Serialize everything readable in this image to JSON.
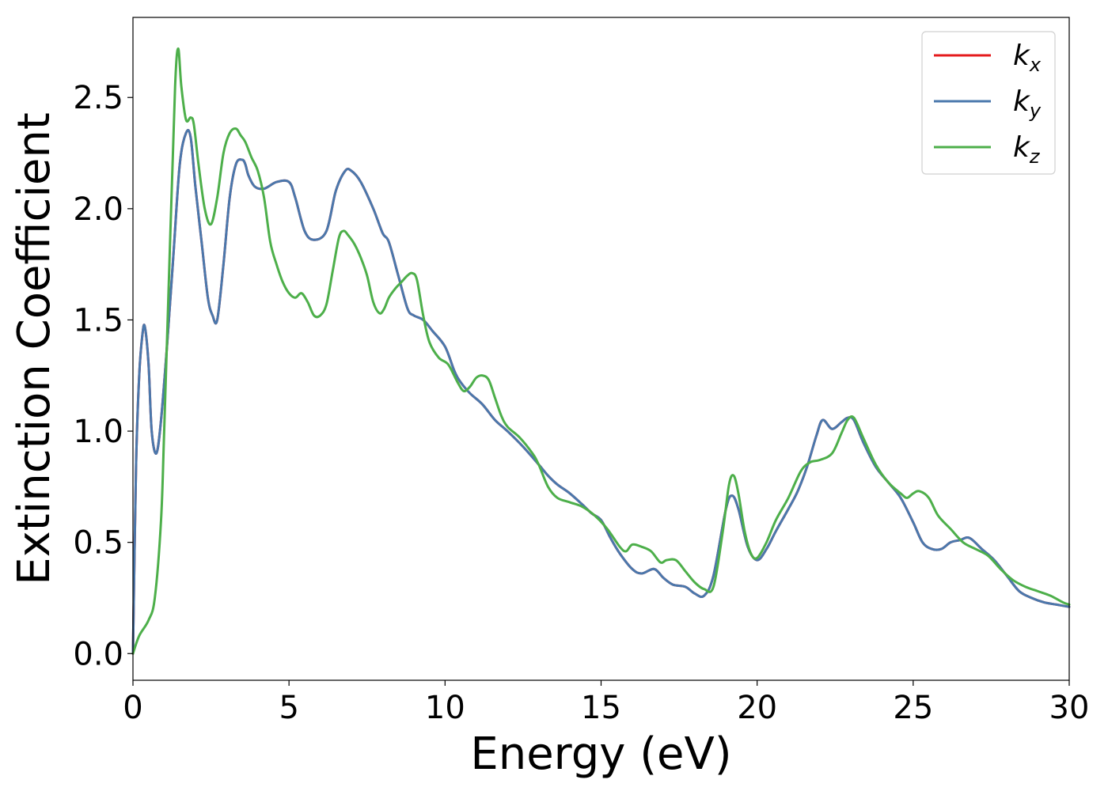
{
  "chart_data": {
    "type": "line",
    "title": "",
    "xlabel": "Energy (eV)",
    "ylabel": "Extinction Coefficient",
    "xlim": [
      0,
      30
    ],
    "ylim": [
      -0.12,
      2.86
    ],
    "xticks": [
      0,
      5,
      10,
      15,
      20,
      25,
      30
    ],
    "yticks": [
      0.0,
      0.5,
      1.0,
      1.5,
      2.0,
      2.5
    ],
    "xtick_labels": [
      "0",
      "5",
      "10",
      "15",
      "20",
      "25",
      "30"
    ],
    "ytick_labels": [
      "0.0",
      "0.5",
      "1.0",
      "1.5",
      "2.0",
      "2.5"
    ],
    "grid": false,
    "legend": "top-right",
    "series": [
      {
        "name": "k_x",
        "label_base": "k",
        "label_sub": "x",
        "color": "#e41a1c",
        "x": [
          0,
          0.1,
          0.2,
          0.3,
          0.38,
          0.5,
          0.6,
          0.75,
          0.9,
          1.1,
          1.3,
          1.5,
          1.7,
          1.85,
          2.0,
          2.2,
          2.4,
          2.55,
          2.7,
          2.9,
          3.1,
          3.3,
          3.5,
          3.6,
          3.7,
          3.9,
          4.2,
          4.6,
          5.0,
          5.2,
          5.5,
          5.8,
          6.2,
          6.5,
          6.8,
          7.0,
          7.3,
          7.7,
          8.0,
          8.2,
          8.5,
          8.8,
          9.0,
          9.3,
          9.6,
          10.0,
          10.3,
          10.5,
          10.8,
          11.2,
          11.6,
          12.0,
          12.5,
          13.0,
          13.3,
          13.6,
          14.0,
          14.4,
          14.7,
          15.0,
          15.3,
          15.6,
          16.0,
          16.3,
          16.7,
          17.0,
          17.3,
          17.7,
          18.0,
          18.3,
          18.6,
          19.0,
          19.2,
          19.4,
          19.7,
          20.0,
          20.3,
          20.6,
          21.0,
          21.3,
          21.6,
          21.9,
          22.1,
          22.4,
          22.7,
          22.9,
          23.1,
          23.4,
          23.8,
          24.2,
          24.6,
          25.0,
          25.3,
          25.6,
          25.9,
          26.2,
          26.5,
          26.8,
          27.2,
          27.6,
          28.0,
          28.4,
          28.8,
          29.2,
          29.6,
          30.0
        ],
        "y": [
          0.0,
          0.85,
          1.25,
          1.43,
          1.47,
          1.3,
          1.0,
          0.9,
          1.05,
          1.4,
          1.8,
          2.2,
          2.34,
          2.32,
          2.1,
          1.85,
          1.6,
          1.52,
          1.5,
          1.75,
          2.05,
          2.2,
          2.22,
          2.2,
          2.15,
          2.1,
          2.09,
          2.12,
          2.12,
          2.05,
          1.9,
          1.86,
          1.9,
          2.08,
          2.17,
          2.17,
          2.12,
          2.0,
          1.89,
          1.85,
          1.7,
          1.55,
          1.52,
          1.5,
          1.45,
          1.38,
          1.27,
          1.22,
          1.17,
          1.12,
          1.05,
          1.0,
          0.93,
          0.85,
          0.8,
          0.76,
          0.72,
          0.67,
          0.63,
          0.6,
          0.52,
          0.45,
          0.38,
          0.36,
          0.38,
          0.34,
          0.31,
          0.3,
          0.27,
          0.26,
          0.35,
          0.65,
          0.71,
          0.65,
          0.48,
          0.42,
          0.47,
          0.55,
          0.65,
          0.73,
          0.84,
          0.98,
          1.05,
          1.01,
          1.04,
          1.06,
          1.05,
          0.95,
          0.84,
          0.77,
          0.7,
          0.59,
          0.5,
          0.47,
          0.47,
          0.5,
          0.51,
          0.52,
          0.47,
          0.42,
          0.35,
          0.28,
          0.25,
          0.23,
          0.22,
          0.21
        ]
      },
      {
        "name": "k_y",
        "label_base": "k",
        "label_sub": "y",
        "color": "#4a78ac",
        "x": [
          0,
          0.1,
          0.2,
          0.3,
          0.38,
          0.5,
          0.6,
          0.75,
          0.9,
          1.1,
          1.3,
          1.5,
          1.7,
          1.85,
          2.0,
          2.2,
          2.4,
          2.55,
          2.7,
          2.9,
          3.1,
          3.3,
          3.5,
          3.6,
          3.7,
          3.9,
          4.2,
          4.6,
          5.0,
          5.2,
          5.5,
          5.8,
          6.2,
          6.5,
          6.8,
          7.0,
          7.3,
          7.7,
          8.0,
          8.2,
          8.5,
          8.8,
          9.0,
          9.3,
          9.6,
          10.0,
          10.3,
          10.5,
          10.8,
          11.2,
          11.6,
          12.0,
          12.5,
          13.0,
          13.3,
          13.6,
          14.0,
          14.4,
          14.7,
          15.0,
          15.3,
          15.6,
          16.0,
          16.3,
          16.7,
          17.0,
          17.3,
          17.7,
          18.0,
          18.3,
          18.6,
          19.0,
          19.2,
          19.4,
          19.7,
          20.0,
          20.3,
          20.6,
          21.0,
          21.3,
          21.6,
          21.9,
          22.1,
          22.4,
          22.7,
          22.9,
          23.1,
          23.4,
          23.8,
          24.2,
          24.6,
          25.0,
          25.3,
          25.6,
          25.9,
          26.2,
          26.5,
          26.8,
          27.2,
          27.6,
          28.0,
          28.4,
          28.8,
          29.2,
          29.6,
          30.0
        ],
        "y": [
          0.0,
          0.85,
          1.25,
          1.43,
          1.47,
          1.3,
          1.0,
          0.9,
          1.05,
          1.4,
          1.8,
          2.2,
          2.34,
          2.32,
          2.1,
          1.85,
          1.6,
          1.52,
          1.5,
          1.75,
          2.05,
          2.2,
          2.22,
          2.2,
          2.15,
          2.1,
          2.09,
          2.12,
          2.12,
          2.05,
          1.9,
          1.86,
          1.9,
          2.08,
          2.17,
          2.17,
          2.12,
          2.0,
          1.89,
          1.85,
          1.7,
          1.55,
          1.52,
          1.5,
          1.45,
          1.38,
          1.27,
          1.22,
          1.17,
          1.12,
          1.05,
          1.0,
          0.93,
          0.85,
          0.8,
          0.76,
          0.72,
          0.67,
          0.63,
          0.6,
          0.52,
          0.45,
          0.38,
          0.36,
          0.38,
          0.34,
          0.31,
          0.3,
          0.27,
          0.26,
          0.35,
          0.65,
          0.71,
          0.65,
          0.48,
          0.42,
          0.47,
          0.55,
          0.65,
          0.73,
          0.84,
          0.98,
          1.05,
          1.01,
          1.04,
          1.06,
          1.05,
          0.95,
          0.84,
          0.77,
          0.7,
          0.59,
          0.5,
          0.47,
          0.47,
          0.5,
          0.51,
          0.52,
          0.47,
          0.42,
          0.35,
          0.28,
          0.25,
          0.23,
          0.22,
          0.21
        ]
      },
      {
        "name": "k_z",
        "label_base": "k",
        "label_sub": "z",
        "color": "#4daf4a",
        "x": [
          0,
          0.2,
          0.5,
          0.7,
          0.9,
          1.0,
          1.2,
          1.35,
          1.45,
          1.55,
          1.7,
          1.85,
          1.95,
          2.1,
          2.3,
          2.5,
          2.7,
          2.9,
          3.1,
          3.3,
          3.45,
          3.6,
          3.8,
          4.0,
          4.2,
          4.4,
          4.6,
          4.8,
          5.0,
          5.2,
          5.4,
          5.6,
          5.8,
          6.0,
          6.2,
          6.4,
          6.6,
          6.75,
          6.9,
          7.1,
          7.3,
          7.5,
          7.7,
          7.9,
          8.05,
          8.2,
          8.4,
          8.6,
          8.8,
          8.95,
          9.1,
          9.3,
          9.5,
          9.8,
          10.1,
          10.4,
          10.6,
          10.8,
          11.0,
          11.2,
          11.4,
          11.6,
          11.8,
          12.0,
          12.4,
          12.8,
          13.0,
          13.3,
          13.6,
          14.0,
          14.4,
          14.8,
          15.2,
          15.6,
          15.8,
          16.0,
          16.3,
          16.6,
          16.9,
          17.1,
          17.4,
          17.7,
          18.0,
          18.3,
          18.6,
          18.9,
          19.1,
          19.25,
          19.4,
          19.6,
          19.8,
          20.0,
          20.3,
          20.6,
          21.0,
          21.4,
          21.7,
          22.0,
          22.4,
          22.7,
          22.9,
          23.1,
          23.4,
          23.8,
          24.2,
          24.6,
          24.8,
          25.0,
          25.2,
          25.5,
          25.8,
          26.2,
          26.6,
          27.0,
          27.4,
          27.8,
          28.2,
          28.6,
          29.0,
          29.4,
          29.8,
          30.0
        ],
        "y": [
          0.0,
          0.08,
          0.15,
          0.25,
          0.6,
          1.0,
          1.9,
          2.55,
          2.72,
          2.55,
          2.4,
          2.41,
          2.38,
          2.2,
          2.0,
          1.93,
          2.05,
          2.25,
          2.34,
          2.36,
          2.33,
          2.3,
          2.23,
          2.17,
          2.05,
          1.85,
          1.75,
          1.67,
          1.62,
          1.6,
          1.62,
          1.58,
          1.52,
          1.52,
          1.57,
          1.72,
          1.87,
          1.9,
          1.88,
          1.84,
          1.78,
          1.7,
          1.58,
          1.53,
          1.55,
          1.6,
          1.64,
          1.67,
          1.7,
          1.71,
          1.68,
          1.52,
          1.4,
          1.33,
          1.3,
          1.22,
          1.18,
          1.2,
          1.24,
          1.25,
          1.23,
          1.15,
          1.07,
          1.02,
          0.97,
          0.9,
          0.85,
          0.75,
          0.7,
          0.68,
          0.66,
          0.62,
          0.56,
          0.48,
          0.46,
          0.49,
          0.48,
          0.46,
          0.41,
          0.42,
          0.42,
          0.37,
          0.32,
          0.29,
          0.3,
          0.55,
          0.76,
          0.8,
          0.72,
          0.55,
          0.45,
          0.43,
          0.5,
          0.6,
          0.7,
          0.82,
          0.86,
          0.87,
          0.9,
          0.99,
          1.05,
          1.06,
          0.97,
          0.85,
          0.77,
          0.72,
          0.7,
          0.72,
          0.73,
          0.7,
          0.62,
          0.56,
          0.5,
          0.47,
          0.44,
          0.38,
          0.33,
          0.3,
          0.28,
          0.26,
          0.23,
          0.22
        ]
      }
    ]
  }
}
